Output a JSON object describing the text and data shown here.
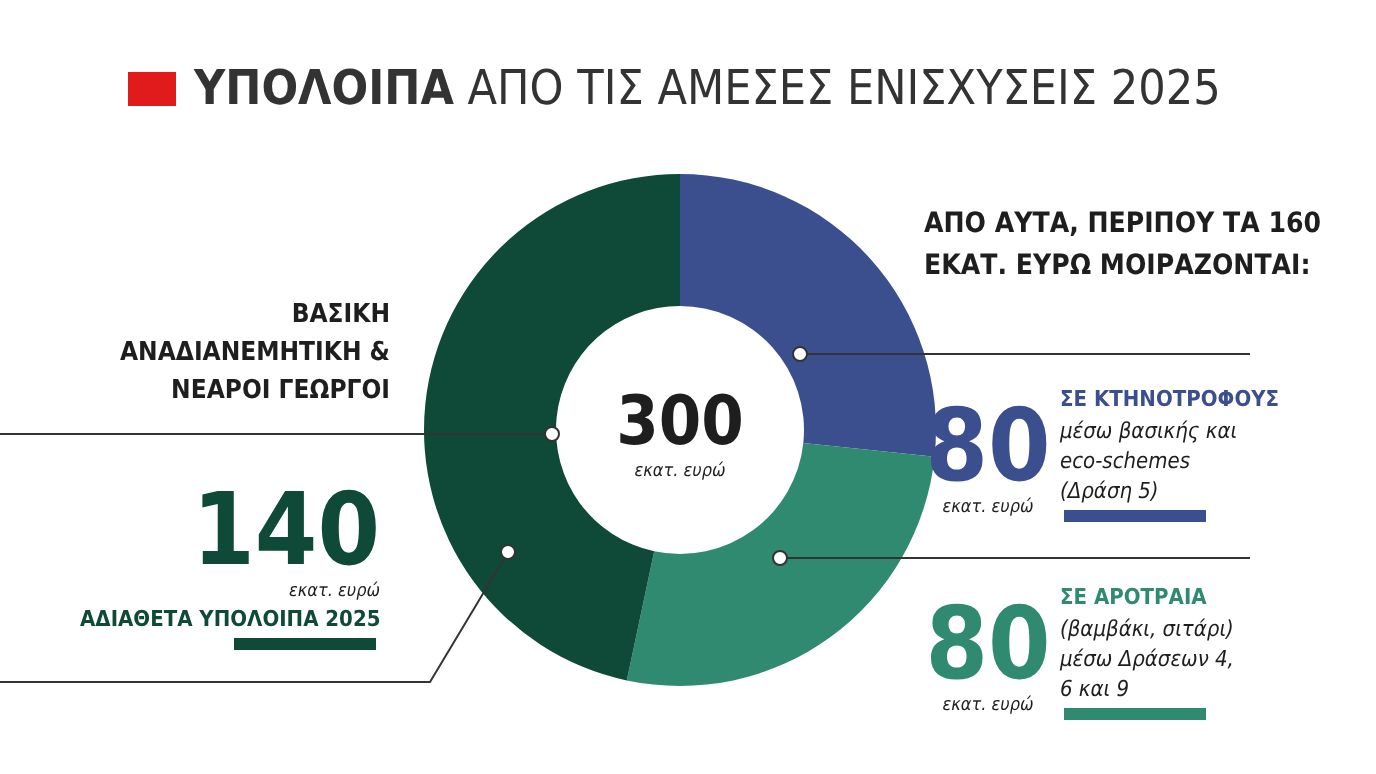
{
  "chart_data": {
    "type": "donut",
    "title": "ΥΠΟΛΟΙΠΑ ΑΠΟ ΤΙΣ ΑΜΕΣΕΣ ΕΝΙΣΧΥΣΕΙΣ 2025",
    "categories": [
      "ΣΕ ΚΤΗΝΟΤΡΟΦΟΥΣ",
      "ΣΕ ΑΡΟΤΡΑΙΑ",
      "ΑΔΙΑΘΕΤΑ ΥΠΟΛΟΙΠΑ 2025"
    ],
    "values": [
      80,
      80,
      140
    ],
    "colors": [
      "#3b4f8e",
      "#2f8a6f",
      "#0e4a37"
    ],
    "data_labels": true,
    "annotations": [
      "300",
      "εκατ. ευρώ",
      "ΒΑΣΙΚΗ ΑΝΑΔΙΑΝΕΜΗΤΙΚΗ & ΝΕΑΡΟΙ ΓΕΩΡΓΟΙ",
      "ΑΠΟ ΑΥΤΑ, ΠΕΡΙΠΟΥ ΤΑ 160 ΕΚΑΤ. ΕΥΡΩ ΜΟΙΡΑΖΟΝΤΑΙ:",
      "μέσω βασικής και eco-schemes (Δράση 5)",
      "(βαμβάκι, σιτάρι) μέσω Δράσεων 4, 6 και 9"
    ]
  }
}
